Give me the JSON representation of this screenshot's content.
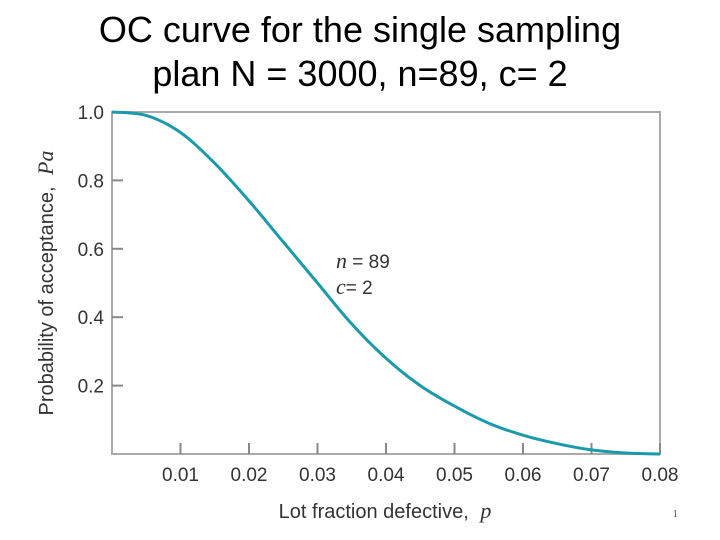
{
  "slide": {
    "title_line1": "OC curve for the single sampling",
    "title_line2": "plan N = 3000, n=89, c= 2",
    "page_number": "1"
  },
  "colors": {
    "curve": "#1a9aaa",
    "frame": "#aaaaaa",
    "tick": "#888888",
    "text": "#333333"
  },
  "chart_data": {
    "type": "line",
    "title": "OC curve for the single sampling plan N = 3000, n=89, c= 2",
    "xlabel": "Lot fraction defective,",
    "xlabel_symbol": "p",
    "ylabel": "Probability of acceptance,",
    "ylabel_symbol": "Pa",
    "xlim": [
      0,
      0.08
    ],
    "ylim": [
      0,
      1.0
    ],
    "x_ticks": [
      0.01,
      0.02,
      0.03,
      0.04,
      0.05,
      0.06,
      0.07,
      0.08
    ],
    "x_tick_labels": [
      "0.01",
      "0.02",
      "0.03",
      "0.04",
      "0.05",
      "0.06",
      "0.07",
      "0.08"
    ],
    "y_ticks": [
      0.2,
      0.4,
      0.6,
      0.8,
      1.0
    ],
    "y_tick_labels": [
      "0.2",
      "0.4",
      "0.6",
      "0.8",
      "1.0"
    ],
    "grid": false,
    "annotations": [
      {
        "symbol": "n",
        "text": " = 89"
      },
      {
        "symbol": "c",
        "text": "= 2"
      }
    ],
    "series": [
      {
        "name": "n = 89, c = 2",
        "x": [
          0,
          0.005,
          0.01,
          0.015,
          0.02,
          0.025,
          0.03,
          0.035,
          0.04,
          0.045,
          0.05,
          0.055,
          0.06,
          0.065,
          0.07,
          0.075,
          0.08
        ],
        "y": [
          1.0,
          0.99,
          0.94,
          0.85,
          0.74,
          0.62,
          0.5,
          0.38,
          0.28,
          0.2,
          0.14,
          0.09,
          0.055,
          0.03,
          0.012,
          0.003,
          0.0
        ]
      }
    ]
  }
}
